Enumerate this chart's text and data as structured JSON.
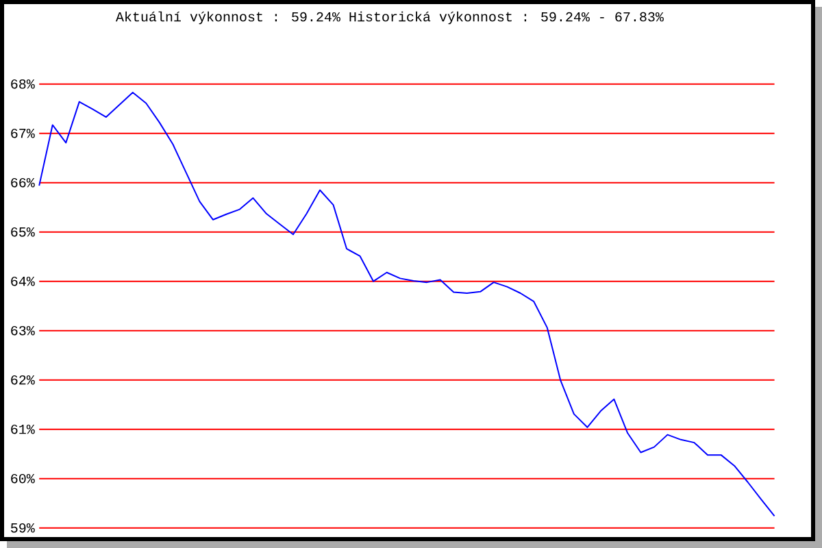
{
  "chart_data": {
    "type": "line",
    "title": "Aktuální výkonnost : 59.24% Historická výkonnost : 59.24% - 67.83%",
    "categories": [
      null,
      null,
      null,
      null,
      null,
      null,
      null,
      null,
      null,
      null,
      null,
      null,
      null,
      null,
      null,
      null,
      null,
      null,
      null,
      null,
      null,
      null,
      null,
      null,
      null,
      null,
      null,
      null,
      null,
      null,
      null,
      null,
      null,
      null,
      null,
      null,
      null,
      null,
      null,
      null,
      null,
      null,
      null,
      null,
      null,
      null,
      null,
      null,
      null,
      null,
      null,
      null,
      null,
      null,
      null,
      null
    ],
    "series": [
      {
        "color": "#0000ff",
        "values": [
          65.94,
          67.17,
          66.81,
          67.64,
          67.49,
          67.33,
          67.58,
          67.83,
          67.61,
          67.22,
          66.78,
          66.2,
          65.62,
          65.25,
          65.36,
          65.46,
          65.69,
          65.37,
          65.16,
          64.95,
          65.37,
          65.85,
          65.55,
          64.66,
          64.51,
          64.0,
          64.18,
          64.06,
          64.01,
          63.98,
          64.03,
          63.78,
          63.76,
          63.79,
          63.98,
          63.89,
          63.76,
          63.59,
          63.06,
          61.99,
          61.31,
          61.04,
          61.37,
          61.61,
          60.93,
          60.53,
          60.64,
          60.89,
          60.79,
          60.73,
          60.48,
          60.48,
          60.26,
          59.93,
          59.58,
          59.24
        ]
      }
    ],
    "ylim": [
      59,
      68
    ],
    "yticks": [
      {
        "value": 59,
        "label": "59%"
      },
      {
        "value": 60,
        "label": "60%"
      },
      {
        "value": 61,
        "label": "61%"
      },
      {
        "value": 62,
        "label": "62%"
      },
      {
        "value": 63,
        "label": "63%"
      },
      {
        "value": 64,
        "label": "64%"
      },
      {
        "value": 65,
        "label": "65%"
      },
      {
        "value": 66,
        "label": "66%"
      },
      {
        "value": 67,
        "label": "67%"
      },
      {
        "value": 68,
        "label": "68%"
      }
    ],
    "grid": "y"
  }
}
